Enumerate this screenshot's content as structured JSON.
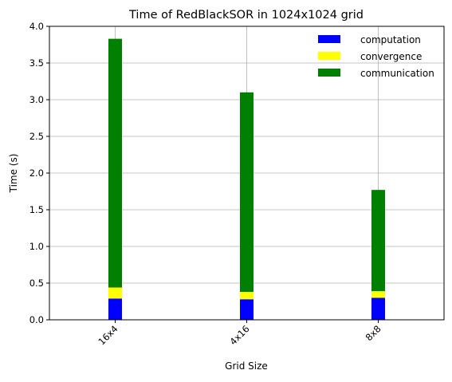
{
  "chart_data": {
    "type": "bar",
    "stacked": true,
    "title": "Time of RedBlackSOR in 1024x1024 grid",
    "xlabel": "Grid Size",
    "ylabel": "Time (s)",
    "categories": [
      "16x4",
      "4x16",
      "8x8"
    ],
    "ylim": [
      0,
      4.0
    ],
    "yticks": [
      "0.0",
      "0.5",
      "1.0",
      "1.5",
      "2.0",
      "2.5",
      "3.0",
      "3.5",
      "4.0"
    ],
    "grid": true,
    "legend_position": "top-right",
    "series": [
      {
        "name": "computation",
        "color": "#0000ff",
        "values": [
          0.29,
          0.28,
          0.3
        ]
      },
      {
        "name": "convergence",
        "color": "#ffff00",
        "values": [
          0.15,
          0.1,
          0.09
        ]
      },
      {
        "name": "communication",
        "color": "#008000",
        "values": [
          3.39,
          2.72,
          1.38
        ]
      }
    ]
  }
}
